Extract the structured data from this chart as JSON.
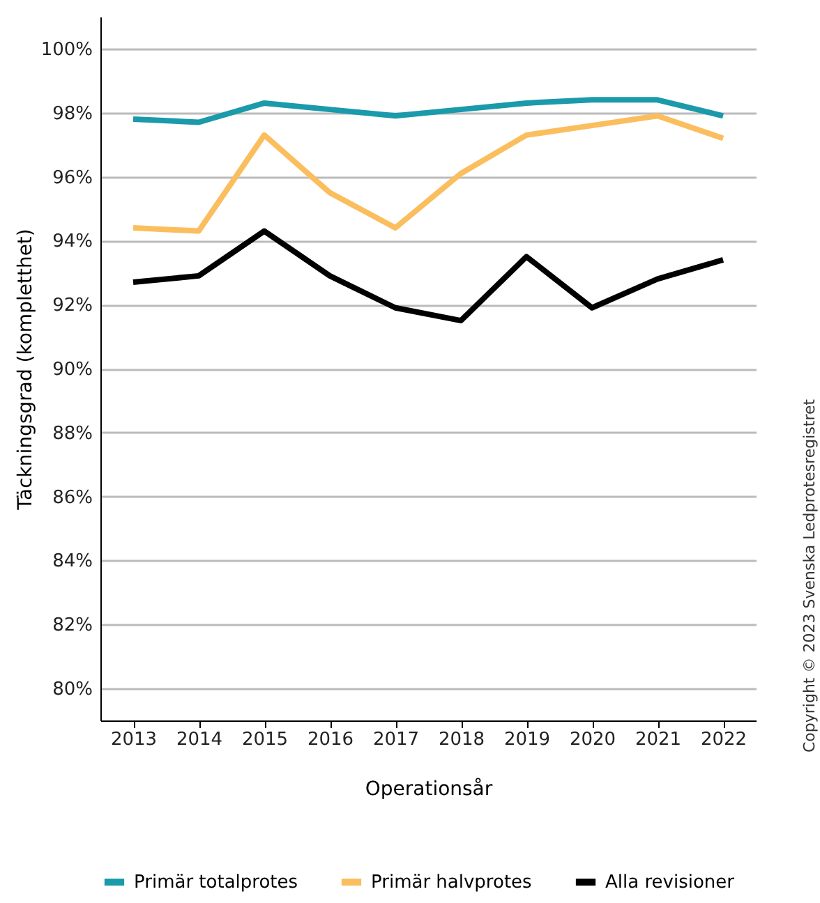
{
  "chart_data": {
    "type": "line",
    "xlabel": "Operationsår",
    "ylabel": "Täckningsgrad (kompletthet)",
    "categories": [
      "2013",
      "2014",
      "2015",
      "2016",
      "2017",
      "2018",
      "2019",
      "2020",
      "2021",
      "2022"
    ],
    "series": [
      {
        "name": "Primär totalprotes",
        "color": "#1a9aaa",
        "values": [
          97.8,
          97.7,
          98.3,
          98.1,
          97.9,
          98.1,
          98.3,
          98.4,
          98.4,
          97.9
        ]
      },
      {
        "name": "Primär halvprotes",
        "color": "#fbbe5e",
        "values": [
          94.4,
          94.3,
          97.3,
          95.5,
          94.4,
          96.1,
          97.3,
          97.6,
          97.9,
          97.2
        ]
      },
      {
        "name": "Alla revisioner",
        "color": "#000000",
        "values": [
          92.7,
          92.9,
          94.3,
          92.9,
          91.9,
          91.5,
          93.5,
          91.9,
          92.8,
          93.4
        ]
      }
    ],
    "ylim": [
      79,
      101
    ],
    "yticks": [
      {
        "value": 80,
        "label": "80%"
      },
      {
        "value": 82,
        "label": "82%"
      },
      {
        "value": 84,
        "label": "84%"
      },
      {
        "value": 86,
        "label": "86%"
      },
      {
        "value": 88,
        "label": "88%"
      },
      {
        "value": 90,
        "label": "90%"
      },
      {
        "value": 92,
        "label": "92%"
      },
      {
        "value": 94,
        "label": "94%"
      },
      {
        "value": 96,
        "label": "96%"
      },
      {
        "value": 98,
        "label": "98%"
      },
      {
        "value": 100,
        "label": "100%"
      }
    ],
    "grid": "y",
    "legend": "bottom",
    "marker": "none",
    "line_style": "solid",
    "annotations": [
      "Copyright © 2023 Svenska Ledprotesregistret"
    ]
  }
}
